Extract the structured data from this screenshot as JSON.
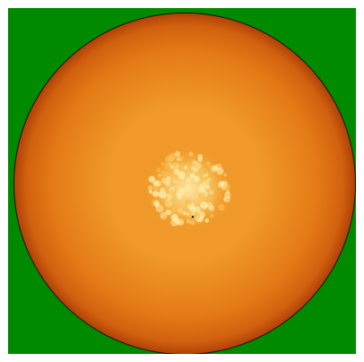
{
  "image": {
    "subject": "solar-disk",
    "colors": {
      "background": "#008a00",
      "page_margin": "#ffffff",
      "limb_edge": "#1a0d00",
      "limb_dark": "#b03a00",
      "mid_orange": "#e87810",
      "center_orange": "#f59a26",
      "core_yellow": "#f7c35a",
      "granule_highlight": "#fff0b0",
      "speck": "#222222"
    }
  }
}
